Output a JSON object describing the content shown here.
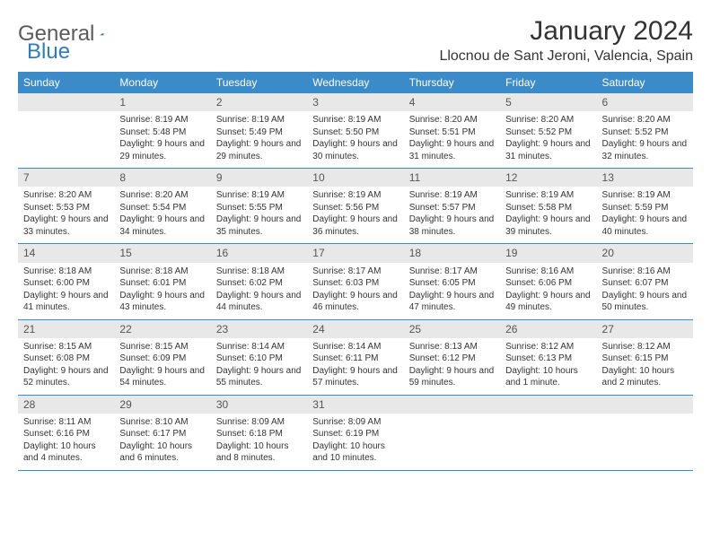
{
  "brand": {
    "part1": "General",
    "part2": "Blue"
  },
  "title": "January 2024",
  "location": "Llocnou de Sant Jeroni, Valencia, Spain",
  "colors": {
    "header_bg": "#3b8bc9",
    "daynum_bg": "#e8e8e8",
    "brand_blue": "#2f7bbf",
    "text": "#333333"
  },
  "weekdays": [
    "Sunday",
    "Monday",
    "Tuesday",
    "Wednesday",
    "Thursday",
    "Friday",
    "Saturday"
  ],
  "weeks": [
    [
      null,
      {
        "n": "1",
        "sr": "8:19 AM",
        "ss": "5:48 PM",
        "dl": "9 hours and 29 minutes."
      },
      {
        "n": "2",
        "sr": "8:19 AM",
        "ss": "5:49 PM",
        "dl": "9 hours and 29 minutes."
      },
      {
        "n": "3",
        "sr": "8:19 AM",
        "ss": "5:50 PM",
        "dl": "9 hours and 30 minutes."
      },
      {
        "n": "4",
        "sr": "8:20 AM",
        "ss": "5:51 PM",
        "dl": "9 hours and 31 minutes."
      },
      {
        "n": "5",
        "sr": "8:20 AM",
        "ss": "5:52 PM",
        "dl": "9 hours and 31 minutes."
      },
      {
        "n": "6",
        "sr": "8:20 AM",
        "ss": "5:52 PM",
        "dl": "9 hours and 32 minutes."
      }
    ],
    [
      {
        "n": "7",
        "sr": "8:20 AM",
        "ss": "5:53 PM",
        "dl": "9 hours and 33 minutes."
      },
      {
        "n": "8",
        "sr": "8:20 AM",
        "ss": "5:54 PM",
        "dl": "9 hours and 34 minutes."
      },
      {
        "n": "9",
        "sr": "8:19 AM",
        "ss": "5:55 PM",
        "dl": "9 hours and 35 minutes."
      },
      {
        "n": "10",
        "sr": "8:19 AM",
        "ss": "5:56 PM",
        "dl": "9 hours and 36 minutes."
      },
      {
        "n": "11",
        "sr": "8:19 AM",
        "ss": "5:57 PM",
        "dl": "9 hours and 38 minutes."
      },
      {
        "n": "12",
        "sr": "8:19 AM",
        "ss": "5:58 PM",
        "dl": "9 hours and 39 minutes."
      },
      {
        "n": "13",
        "sr": "8:19 AM",
        "ss": "5:59 PM",
        "dl": "9 hours and 40 minutes."
      }
    ],
    [
      {
        "n": "14",
        "sr": "8:18 AM",
        "ss": "6:00 PM",
        "dl": "9 hours and 41 minutes."
      },
      {
        "n": "15",
        "sr": "8:18 AM",
        "ss": "6:01 PM",
        "dl": "9 hours and 43 minutes."
      },
      {
        "n": "16",
        "sr": "8:18 AM",
        "ss": "6:02 PM",
        "dl": "9 hours and 44 minutes."
      },
      {
        "n": "17",
        "sr": "8:17 AM",
        "ss": "6:03 PM",
        "dl": "9 hours and 46 minutes."
      },
      {
        "n": "18",
        "sr": "8:17 AM",
        "ss": "6:05 PM",
        "dl": "9 hours and 47 minutes."
      },
      {
        "n": "19",
        "sr": "8:16 AM",
        "ss": "6:06 PM",
        "dl": "9 hours and 49 minutes."
      },
      {
        "n": "20",
        "sr": "8:16 AM",
        "ss": "6:07 PM",
        "dl": "9 hours and 50 minutes."
      }
    ],
    [
      {
        "n": "21",
        "sr": "8:15 AM",
        "ss": "6:08 PM",
        "dl": "9 hours and 52 minutes."
      },
      {
        "n": "22",
        "sr": "8:15 AM",
        "ss": "6:09 PM",
        "dl": "9 hours and 54 minutes."
      },
      {
        "n": "23",
        "sr": "8:14 AM",
        "ss": "6:10 PM",
        "dl": "9 hours and 55 minutes."
      },
      {
        "n": "24",
        "sr": "8:14 AM",
        "ss": "6:11 PM",
        "dl": "9 hours and 57 minutes."
      },
      {
        "n": "25",
        "sr": "8:13 AM",
        "ss": "6:12 PM",
        "dl": "9 hours and 59 minutes."
      },
      {
        "n": "26",
        "sr": "8:12 AM",
        "ss": "6:13 PM",
        "dl": "10 hours and 1 minute."
      },
      {
        "n": "27",
        "sr": "8:12 AM",
        "ss": "6:15 PM",
        "dl": "10 hours and 2 minutes."
      }
    ],
    [
      {
        "n": "28",
        "sr": "8:11 AM",
        "ss": "6:16 PM",
        "dl": "10 hours and 4 minutes."
      },
      {
        "n": "29",
        "sr": "8:10 AM",
        "ss": "6:17 PM",
        "dl": "10 hours and 6 minutes."
      },
      {
        "n": "30",
        "sr": "8:09 AM",
        "ss": "6:18 PM",
        "dl": "10 hours and 8 minutes."
      },
      {
        "n": "31",
        "sr": "8:09 AM",
        "ss": "6:19 PM",
        "dl": "10 hours and 10 minutes."
      },
      null,
      null,
      null
    ]
  ],
  "labels": {
    "sunrise": "Sunrise: ",
    "sunset": "Sunset: ",
    "daylight": "Daylight: "
  }
}
